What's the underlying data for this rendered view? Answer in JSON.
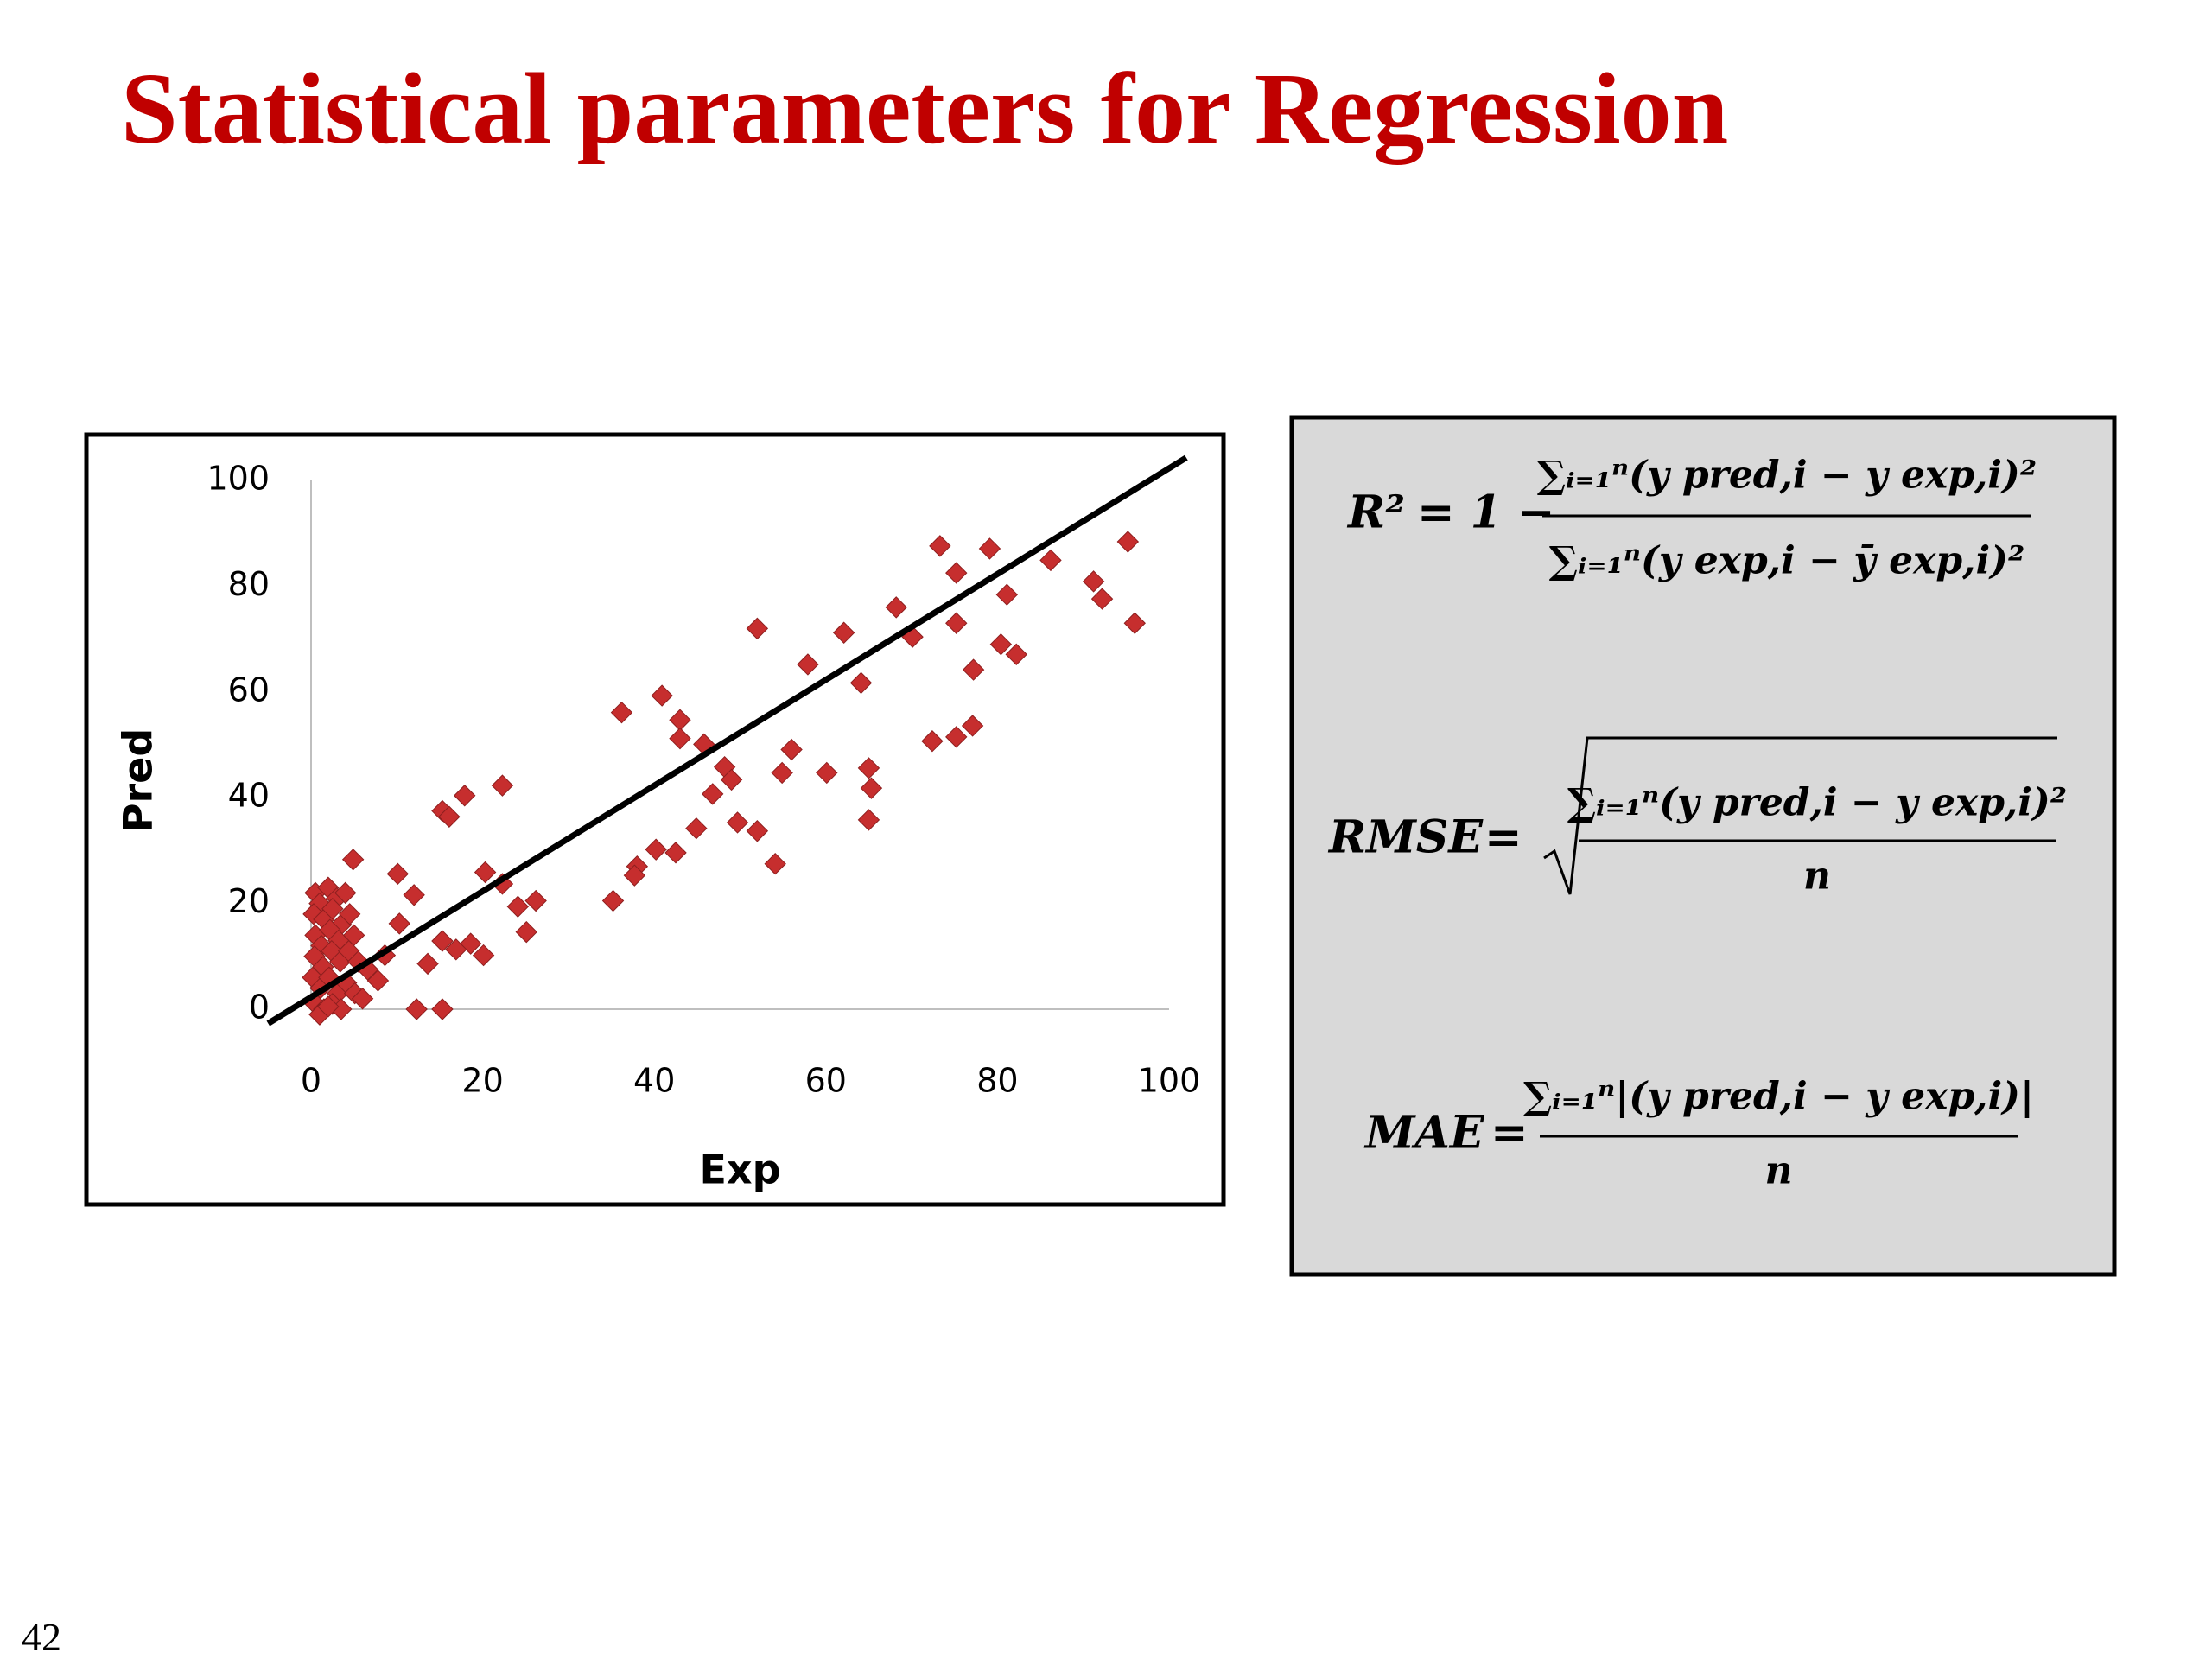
{
  "title": "Statistical parameters for Regression",
  "page_number": "42",
  "chart_data": {
    "type": "scatter",
    "x_label": "Exp",
    "y_label": "Pred",
    "xlim": [
      0,
      100
    ],
    "ylim": [
      0,
      100
    ],
    "xticks": [
      0,
      20,
      40,
      60,
      80,
      100
    ],
    "yticks": [
      0,
      20,
      40,
      60,
      80,
      100
    ],
    "grid": false,
    "series": [
      {
        "color": "#c62e2e",
        "x": [
          73.3,
          79.1,
          75.2,
          86.2,
          95.2,
          91.2,
          92.2,
          96.0,
          81.1,
          75.2,
          68.2,
          70.1,
          52.0,
          62.1,
          57.9,
          64.1,
          77.2,
          80.4,
          82.2,
          36.2,
          40.9,
          43.0,
          43.0,
          45.8,
          48.2,
          49.0,
          46.8,
          56.0,
          54.9,
          60.1,
          65.0,
          65.3,
          65.0,
          72.4,
          75.2,
          77.1,
          44.9,
          49.7,
          52.0,
          54.1,
          42.5,
          40.2,
          38.0,
          37.7,
          35.2,
          22.3,
          17.9,
          15.3,
          16.1,
          20.3,
          22.3,
          24.1,
          26.2,
          25.1,
          20.1,
          18.6,
          16.9,
          15.3,
          13.6,
          12.3,
          15.3,
          4.9,
          10.1,
          12.0,
          10.3,
          7.8,
          8.6,
          6.6,
          0.5,
          1.0,
          2.0,
          3.0,
          4.0,
          0.3,
          1.5,
          2.5,
          3.5,
          4.5,
          0.5,
          1.2,
          2.2,
          3.2,
          5.0,
          0.4,
          1.4,
          2.4,
          3.4,
          4.4,
          5.5,
          0.2,
          1.1,
          2.1,
          3.1,
          4.1,
          5.1,
          0.5,
          1.5,
          2.5,
          3.5,
          6.0,
          1.0,
          2.0
        ],
        "values": [
          87.6,
          87.1,
          82.5,
          84.9,
          88.4,
          80.9,
          77.6,
          73.0,
          78.4,
          73.0,
          76.0,
          70.4,
          72.0,
          71.2,
          65.2,
          61.7,
          64.2,
          69.0,
          67.1,
          56.1,
          59.3,
          54.7,
          51.2,
          50.1,
          45.8,
          43.4,
          40.7,
          49.1,
          44.7,
          44.7,
          45.6,
          41.8,
          35.8,
          50.7,
          51.5,
          53.6,
          34.2,
          35.3,
          33.7,
          27.5,
          29.6,
          30.2,
          27.0,
          25.3,
          20.5,
          42.3,
          40.4,
          37.5,
          36.4,
          25.9,
          23.7,
          19.4,
          20.5,
          14.6,
          10.2,
          12.4,
          11.3,
          12.9,
          8.6,
          0,
          0,
          28.3,
          25.6,
          21.6,
          16.2,
          5.4,
          10.2,
          7.5,
          22,
          20,
          23,
          21,
          22,
          18,
          17,
          19,
          16,
          18,
          14,
          12,
          15,
          13,
          14,
          10,
          8,
          11,
          9,
          11,
          9,
          6,
          4,
          6,
          3,
          5,
          3,
          1,
          0,
          1,
          0,
          2,
          -1,
          0.5
        ]
      }
    ],
    "trendline": {
      "x": [
        -5,
        102
      ],
      "values": [
        -2.7,
        104.3
      ],
      "color": "#000000"
    }
  },
  "formulas": [
    {
      "lhs": "R²",
      "operator": "= 1 −",
      "numerator": "∑ᵢ₌₁ⁿ(y pred,i − y exp,i)²",
      "denominator": "∑ᵢ₌₁ⁿ(y exp,i − ȳ exp,i)²"
    },
    {
      "lhs": "RMSE",
      "operator": "=",
      "numerator": "∑ᵢ₌₁ⁿ(y pred,i − y exp,i)²",
      "denominator": "n"
    },
    {
      "lhs": "MAE",
      "operator": "=",
      "numerator": "∑ᵢ₌₁ⁿ|(y pred,i − y exp,i)|",
      "denominator": "n"
    }
  ]
}
